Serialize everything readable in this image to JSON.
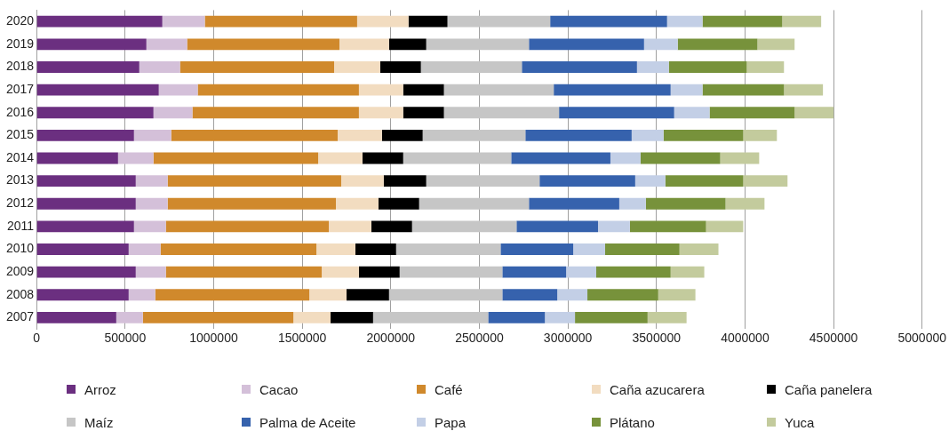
{
  "chart_data": {
    "type": "bar",
    "orientation": "horizontal",
    "stacked": true,
    "categories": [
      "2020",
      "2019",
      "2018",
      "2017",
      "2016",
      "2015",
      "2014",
      "2013",
      "2012",
      "2011",
      "2010",
      "2009",
      "2008",
      "2007"
    ],
    "xlim": [
      0,
      5000000
    ],
    "xticks": [
      0,
      500000,
      1000000,
      1500000,
      2000000,
      2500000,
      3000000,
      3500000,
      4000000,
      4500000,
      5000000
    ],
    "grid": "x",
    "legend": "bottom",
    "marker": "square",
    "series": [
      {
        "name": "Arroz",
        "color": "#6b2f80",
        "values": [
          710000,
          620000,
          580000,
          690000,
          660000,
          550000,
          460000,
          560000,
          560000,
          550000,
          520000,
          560000,
          520000,
          450000
        ]
      },
      {
        "name": "Cacao",
        "color": "#d4c0d9",
        "values": [
          240000,
          230000,
          230000,
          220000,
          220000,
          210000,
          200000,
          180000,
          180000,
          180000,
          180000,
          170000,
          150000,
          150000
        ]
      },
      {
        "name": "Café",
        "color": "#d0892c",
        "values": [
          860000,
          860000,
          870000,
          910000,
          940000,
          940000,
          930000,
          980000,
          950000,
          920000,
          880000,
          880000,
          870000,
          850000
        ]
      },
      {
        "name": "Caña azucarera",
        "color": "#f2dcc0",
        "values": [
          290000,
          280000,
          260000,
          250000,
          250000,
          250000,
          250000,
          240000,
          240000,
          240000,
          220000,
          210000,
          210000,
          210000
        ]
      },
      {
        "name": "Caña panelera",
        "color": "#000000",
        "values": [
          220000,
          210000,
          230000,
          230000,
          230000,
          230000,
          230000,
          240000,
          230000,
          230000,
          230000,
          230000,
          240000,
          240000
        ]
      },
      {
        "name": "Maíz",
        "color": "#c6c6c6",
        "values": [
          580000,
          580000,
          570000,
          620000,
          650000,
          580000,
          610000,
          640000,
          620000,
          590000,
          590000,
          580000,
          640000,
          650000
        ]
      },
      {
        "name": "Palma de Aceite",
        "color": "#3662ad",
        "values": [
          660000,
          650000,
          650000,
          660000,
          650000,
          600000,
          560000,
          540000,
          510000,
          460000,
          410000,
          360000,
          310000,
          320000
        ]
      },
      {
        "name": "Papa",
        "color": "#c3cfe6",
        "values": [
          200000,
          190000,
          180000,
          180000,
          200000,
          180000,
          170000,
          170000,
          150000,
          180000,
          180000,
          170000,
          170000,
          170000
        ]
      },
      {
        "name": "Plátano",
        "color": "#77923b",
        "values": [
          450000,
          450000,
          440000,
          460000,
          480000,
          450000,
          450000,
          440000,
          450000,
          430000,
          420000,
          420000,
          400000,
          410000
        ]
      },
      {
        "name": "Yuca",
        "color": "#c3cb9d",
        "values": [
          220000,
          210000,
          210000,
          220000,
          220000,
          190000,
          220000,
          250000,
          220000,
          210000,
          220000,
          190000,
          210000,
          220000
        ]
      }
    ]
  }
}
